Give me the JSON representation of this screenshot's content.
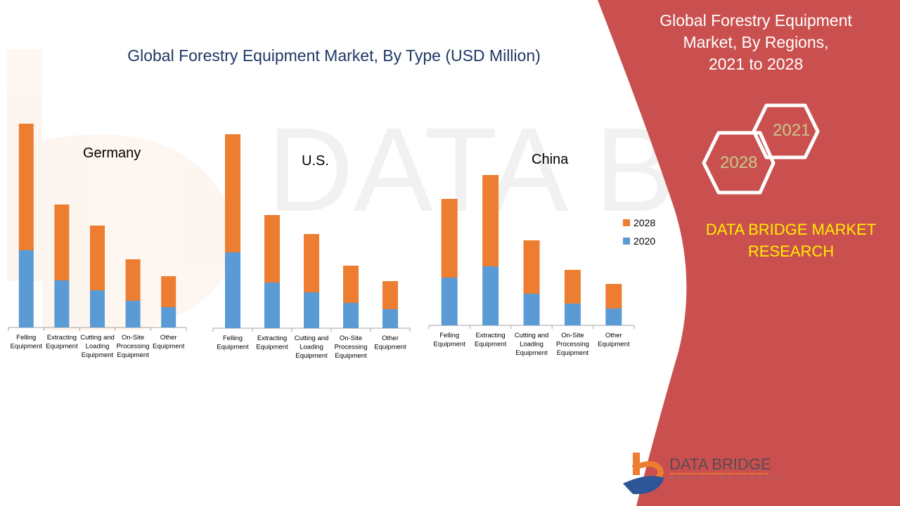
{
  "main_title": "Global Forestry Equipment Market, By Type (USD Million)",
  "right_panel": {
    "title_lines": [
      "Global Forestry Equipment",
      "Market, By Regions,",
      "2021 to 2028"
    ],
    "hexagons": [
      "2021",
      "2028"
    ],
    "brand_lines": [
      "DATA BRIDGE MARKET",
      "RESEARCH"
    ],
    "logo_name": "DATA BRIDGE",
    "logo_tagline": "MARKET RESEARCH",
    "colors": {
      "panel": "#c9504e",
      "brand_yellow": "#ffed00",
      "hex_text": "#c5c98c"
    }
  },
  "legend": [
    {
      "label": "2028",
      "color": "#ed7d31"
    },
    {
      "label": "2020",
      "color": "#5b9bd5"
    }
  ],
  "chart_data": [
    {
      "type": "bar",
      "stacked": true,
      "title": "Germany",
      "categories": [
        [
          "Felling",
          "Equipment"
        ],
        [
          "Extracting",
          "Equipment"
        ],
        [
          "Cutting and",
          "Loading",
          "Equipment"
        ],
        [
          "On-Site",
          "Processing",
          "Equipment"
        ],
        [
          "Other",
          "Equipment"
        ]
      ],
      "series": [
        {
          "name": "2020",
          "values": [
            110,
            67,
            53,
            38,
            29
          ]
        },
        {
          "name": "2028",
          "values": [
            180,
            108,
            92,
            59,
            44
          ]
        }
      ],
      "y_axis_shown": false,
      "units": "relative (no axis scale shown)"
    },
    {
      "type": "bar",
      "stacked": true,
      "title": "U.S.",
      "categories": [
        [
          "Felling",
          "Equipment"
        ],
        [
          "Extracting",
          "Equipment"
        ],
        [
          "Cutting and",
          "Loading",
          "Equipment"
        ],
        [
          "On-Site",
          "Processing",
          "Equipment"
        ],
        [
          "Other",
          "Equipment"
        ]
      ],
      "series": [
        {
          "name": "2020",
          "values": [
            108,
            65,
            51,
            36,
            27
          ]
        },
        {
          "name": "2028",
          "values": [
            168,
            96,
            83,
            53,
            40
          ]
        }
      ],
      "y_axis_shown": false,
      "units": "relative (no axis scale shown)"
    },
    {
      "type": "bar",
      "stacked": true,
      "title": "China",
      "categories": [
        [
          "Felling",
          "Equipment"
        ],
        [
          "Extracting",
          "Equipment"
        ],
        [
          "Cutting and",
          "Loading",
          "Equipment"
        ],
        [
          "On-Site",
          "Processing",
          "Equipment"
        ],
        [
          "Other",
          "Equipment"
        ]
      ],
      "series": [
        {
          "name": "2020",
          "values": [
            68,
            84,
            45,
            31,
            24
          ]
        },
        {
          "name": "2028",
          "values": [
            112,
            130,
            76,
            48,
            35
          ]
        }
      ],
      "y_axis_shown": false,
      "units": "relative (no axis scale shown)",
      "legend": "right"
    }
  ]
}
